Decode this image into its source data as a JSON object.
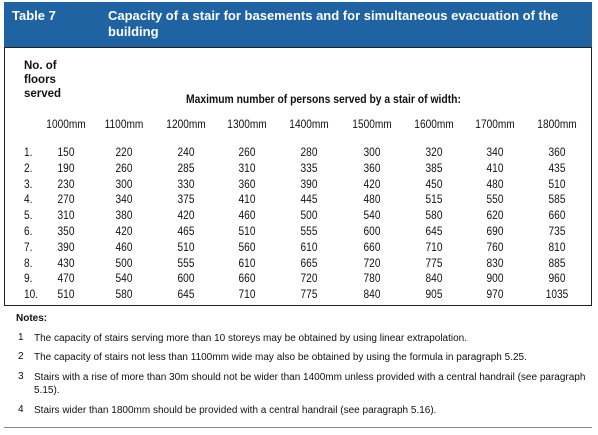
{
  "header": {
    "label": "Table 7",
    "title": "Capacity of a stair for basements and for simultaneous evacuation of the building"
  },
  "table": {
    "row_header": "No. of floors served",
    "column_group_header": "Maximum number of persons served by a stair of width:",
    "columns": [
      "1000mm",
      "1100mm",
      "1200mm",
      "1300mm",
      "1400mm",
      "1500mm",
      "1600mm",
      "1700mm",
      "1800mm"
    ],
    "row_labels": [
      "1.",
      "2.",
      "3.",
      "4.",
      "5.",
      "6.",
      "7.",
      "8.",
      "9.",
      "10."
    ],
    "rows": [
      [
        150,
        220,
        240,
        260,
        280,
        300,
        320,
        340,
        360
      ],
      [
        190,
        260,
        285,
        310,
        335,
        360,
        385,
        410,
        435
      ],
      [
        230,
        300,
        330,
        360,
        390,
        420,
        450,
        480,
        510
      ],
      [
        270,
        340,
        375,
        410,
        445,
        480,
        515,
        550,
        585
      ],
      [
        310,
        380,
        420,
        460,
        500,
        540,
        580,
        620,
        660
      ],
      [
        350,
        420,
        465,
        510,
        555,
        600,
        645,
        690,
        735
      ],
      [
        390,
        460,
        510,
        560,
        610,
        660,
        710,
        760,
        810
      ],
      [
        430,
        500,
        555,
        610,
        665,
        720,
        775,
        830,
        885
      ],
      [
        470,
        540,
        600,
        660,
        720,
        780,
        840,
        900,
        960
      ],
      [
        510,
        580,
        645,
        710,
        775,
        840,
        905,
        970,
        1035
      ]
    ]
  },
  "notes": {
    "title": "Notes:",
    "items": [
      {
        "number": "1",
        "text": "The capacity of stairs serving more than 10 storeys may be obtained by using linear extrapolation."
      },
      {
        "number": "2",
        "text": "The capacity of stairs not less than 1100mm wide may also be obtained by using the formula in paragraph 5.25."
      },
      {
        "number": "3",
        "text": "Stairs with a rise of more than 30m should not be wider than 1400mm unless provided with a central handrail (see paragraph 5.15)."
      },
      {
        "number": "4",
        "text": "Stairs wider than 1800mm should be provided with a central handrail (see paragraph 5.16)."
      }
    ]
  }
}
